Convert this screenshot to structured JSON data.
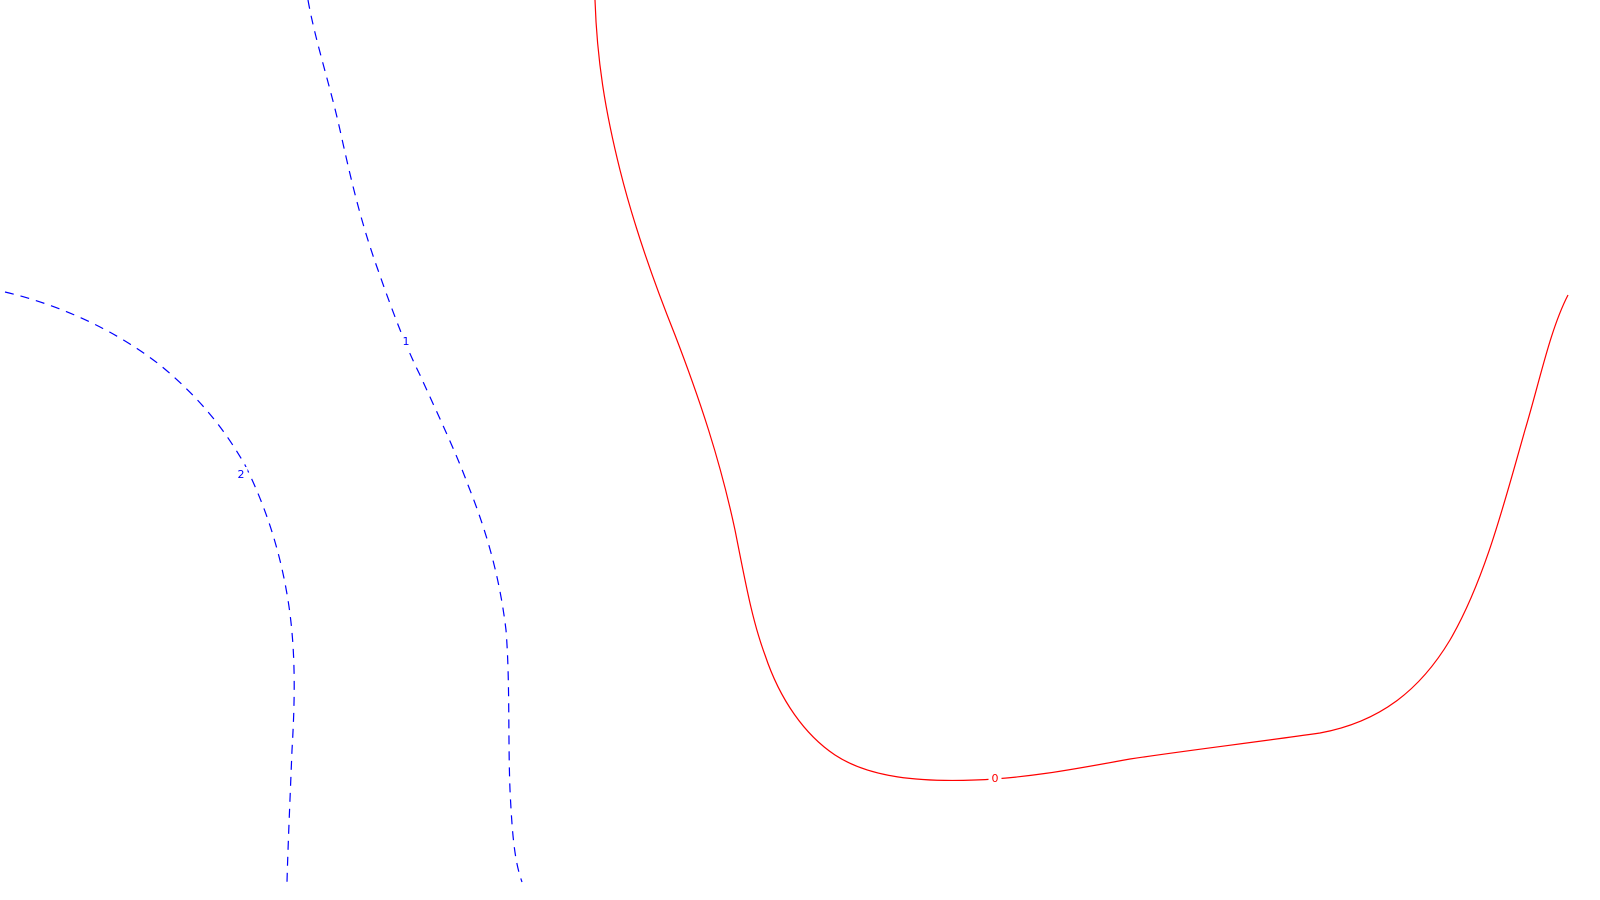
{
  "chart_data": {
    "type": "contour",
    "title": "",
    "xlabel": "",
    "ylabel": "",
    "grid": false,
    "legend": "none",
    "contours": [
      {
        "level": 0,
        "label": "0",
        "color": "#ff0000",
        "style": "solid"
      },
      {
        "level": 1,
        "label": "1",
        "color": "#0000ff",
        "style": "dashed"
      },
      {
        "level": 2,
        "label": "2",
        "color": "#0000ff",
        "style": "dashed"
      }
    ]
  }
}
